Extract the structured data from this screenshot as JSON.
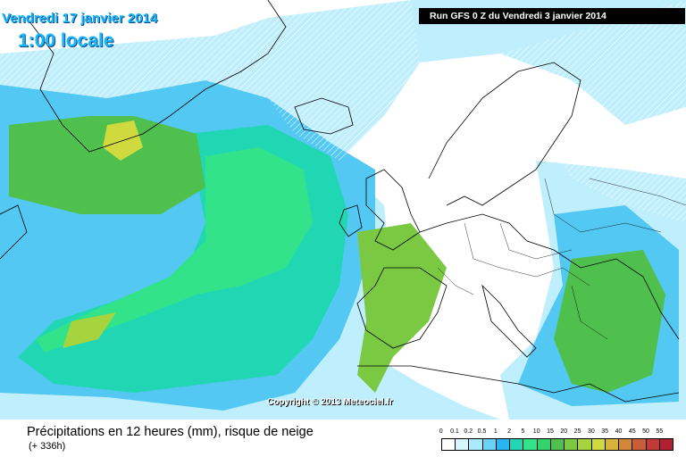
{
  "header": {
    "date": "Vendredi 17 janvier 2014",
    "time": "1:00 locale",
    "run": "Run GFS 0 Z du Vendredi 3 janvier 2014"
  },
  "map": {
    "copyright": "Copyright © 2013 Meteociel.fr"
  },
  "footer": {
    "title": "Précipitations en 12 heures (mm), risque de neige",
    "subtitle": "(+ 336h)"
  },
  "legend": {
    "labels": [
      "0",
      "0.1",
      "0.2",
      "0.5",
      "1",
      "2",
      "5",
      "10",
      "15",
      "20",
      "25",
      "30",
      "35",
      "40",
      "45",
      "50",
      "55"
    ],
    "colors": [
      "#ffffff",
      "#d7f5fd",
      "#a8e9fb",
      "#69d3f7",
      "#2ab4f0",
      "#21d7b3",
      "#33e38a",
      "#34d26b",
      "#4fc04d",
      "#7bc843",
      "#a7d33f",
      "#d0d93e",
      "#d8b33c",
      "#d2873a",
      "#c95d39",
      "#c03b37",
      "#b02032"
    ]
  }
}
